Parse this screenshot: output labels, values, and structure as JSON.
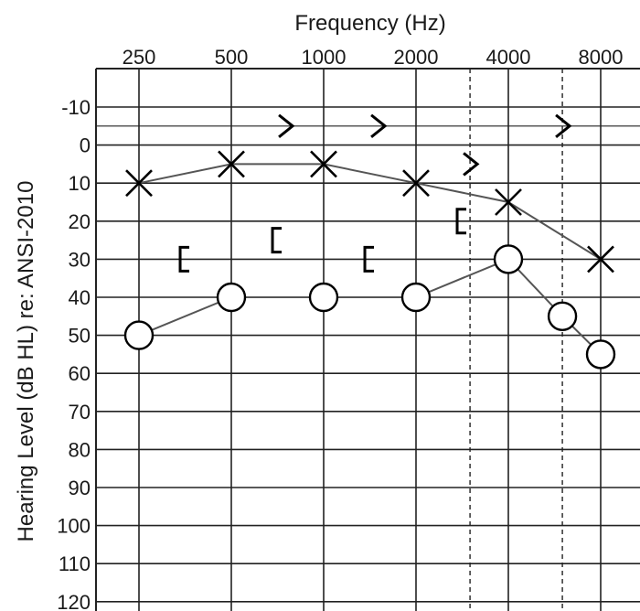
{
  "chart_data": {
    "type": "line",
    "title": "",
    "xlabel": "Frequency (Hz)",
    "ylabel": "Hearing Level (dB HL) re: ANSI-2010",
    "x_tick_labels": [
      "250",
      "500",
      "1000",
      "2000",
      "4000",
      "8000"
    ],
    "x_interoctave": [
      3000,
      6000
    ],
    "y_tick_labels": [
      "-10",
      "0",
      "10",
      "20",
      "30",
      "40",
      "50",
      "60",
      "70",
      "80",
      "90",
      "100",
      "110",
      "120"
    ],
    "ylim": [
      -10,
      120
    ],
    "y_inverted": true,
    "grid": true,
    "series": [
      {
        "symbol": "X",
        "color": "#000000",
        "line_color": "#555555",
        "connected": true,
        "points": [
          [
            250,
            10
          ],
          [
            500,
            5
          ],
          [
            1000,
            5
          ],
          [
            2000,
            10
          ],
          [
            4000,
            15
          ],
          [
            8000,
            30
          ]
        ]
      },
      {
        "symbol": "O",
        "color": "#000000",
        "line_color": "#555555",
        "connected": true,
        "points": [
          [
            250,
            50
          ],
          [
            500,
            40
          ],
          [
            1000,
            40
          ],
          [
            2000,
            40
          ],
          [
            4000,
            30
          ],
          [
            6000,
            45
          ],
          [
            8000,
            55
          ]
        ]
      },
      {
        "symbol": ">",
        "color": "#000000",
        "connected": false,
        "points": [
          [
            750,
            -5
          ],
          [
            1500,
            -5
          ],
          [
            3000,
            5
          ],
          [
            6000,
            -5
          ]
        ]
      },
      {
        "symbol": "[",
        "color": "#000000",
        "connected": false,
        "points": [
          [
            350,
            30
          ],
          [
            700,
            25
          ],
          [
            1400,
            30
          ],
          [
            2800,
            20
          ]
        ]
      }
    ]
  }
}
